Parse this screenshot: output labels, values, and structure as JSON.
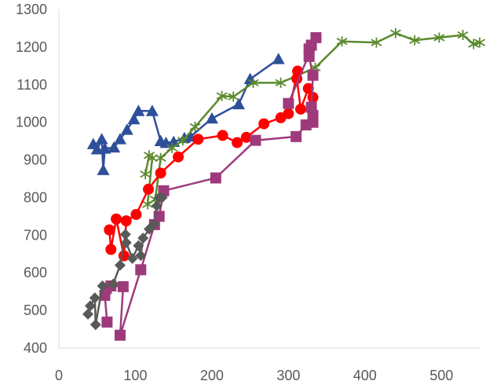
{
  "chart_data": {
    "type": "scatter",
    "title": "",
    "xlabel": "",
    "ylabel": "",
    "xlim": [
      0,
      550
    ],
    "ylim": [
      400,
      1300
    ],
    "x_ticks": [
      0,
      100,
      200,
      300,
      400,
      500
    ],
    "y_ticks": [
      400,
      500,
      600,
      700,
      800,
      900,
      1000,
      1100,
      1200,
      1300
    ],
    "grid": false,
    "legend": "none",
    "series": [
      {
        "color": "#2E4F9A",
        "marker": "triangle",
        "points": [
          [
            45,
            942
          ],
          [
            50,
            928
          ],
          [
            56,
            955
          ],
          [
            58,
            873
          ],
          [
            60,
            930
          ],
          [
            72,
            933
          ],
          [
            80,
            955
          ],
          [
            89,
            980
          ],
          [
            98,
            1008
          ],
          [
            104,
            1030
          ],
          [
            122,
            1030
          ],
          [
            133,
            950
          ],
          [
            140,
            945
          ],
          [
            150,
            948
          ],
          [
            164,
            958
          ],
          [
            172,
            962
          ],
          [
            200,
            1010
          ],
          [
            235,
            1048
          ],
          [
            250,
            1115
          ],
          [
            287,
            1168
          ]
        ]
      },
      {
        "color": "#5B8A2E",
        "marker": "asterisk",
        "points": [
          [
            113,
            862
          ],
          [
            118,
            912
          ],
          [
            122,
            905
          ],
          [
            116,
            782
          ],
          [
            126,
            795
          ],
          [
            133,
            905
          ],
          [
            148,
            932
          ],
          [
            162,
            952
          ],
          [
            178,
            988
          ],
          [
            213,
            1070
          ],
          [
            228,
            1068
          ],
          [
            254,
            1105
          ],
          [
            290,
            1105
          ],
          [
            335,
            1145
          ],
          [
            370,
            1215
          ],
          [
            415,
            1212
          ],
          [
            440,
            1237
          ],
          [
            465,
            1218
          ],
          [
            497,
            1225
          ],
          [
            528,
            1232
          ],
          [
            542,
            1208
          ],
          [
            550,
            1212
          ]
        ]
      },
      {
        "color": "#FF0000",
        "marker": "circle",
        "points": [
          [
            66,
            714
          ],
          [
            68,
            662
          ],
          [
            75,
            743
          ],
          [
            85,
            645
          ],
          [
            88,
            738
          ],
          [
            101,
            755
          ],
          [
            117,
            822
          ],
          [
            133,
            865
          ],
          [
            156,
            908
          ],
          [
            182,
            955
          ],
          [
            214,
            965
          ],
          [
            233,
            946
          ],
          [
            245,
            960
          ],
          [
            268,
            996
          ],
          [
            290,
            1012
          ],
          [
            300,
            1023
          ],
          [
            312,
            1136
          ],
          [
            311,
            1116
          ],
          [
            316,
            1035
          ],
          [
            326,
            1090
          ],
          [
            332,
            1066
          ]
        ]
      },
      {
        "color": "#9E3A7C",
        "marker": "square",
        "points": [
          [
            63,
            469
          ],
          [
            60,
            540
          ],
          [
            62,
            558
          ],
          [
            68,
            565
          ],
          [
            84,
            563
          ],
          [
            80,
            434
          ],
          [
            107,
            608
          ],
          [
            125,
            728
          ],
          [
            131,
            750
          ],
          [
            137,
            818
          ],
          [
            205,
            852
          ],
          [
            257,
            952
          ],
          [
            310,
            962
          ],
          [
            323,
            993
          ],
          [
            332,
            1000
          ],
          [
            332,
            1018
          ],
          [
            330,
            1040
          ],
          [
            332,
            1125
          ],
          [
            327,
            1175
          ],
          [
            327,
            1195
          ],
          [
            330,
            1205
          ],
          [
            336,
            1225
          ],
          [
            300,
            1050
          ]
        ]
      },
      {
        "color": "#595959",
        "marker": "diamond",
        "points": [
          [
            38,
            490
          ],
          [
            41,
            512
          ],
          [
            47,
            533
          ],
          [
            48,
            462
          ],
          [
            57,
            565
          ],
          [
            71,
            570
          ],
          [
            80,
            620
          ],
          [
            87,
            702
          ],
          [
            88,
            680
          ],
          [
            96,
            638
          ],
          [
            104,
            672
          ],
          [
            107,
            646
          ],
          [
            110,
            692
          ],
          [
            118,
            716
          ],
          [
            125,
            730
          ],
          [
            128,
            778
          ],
          [
            131,
            800
          ],
          [
            135,
            800
          ]
        ]
      }
    ]
  }
}
